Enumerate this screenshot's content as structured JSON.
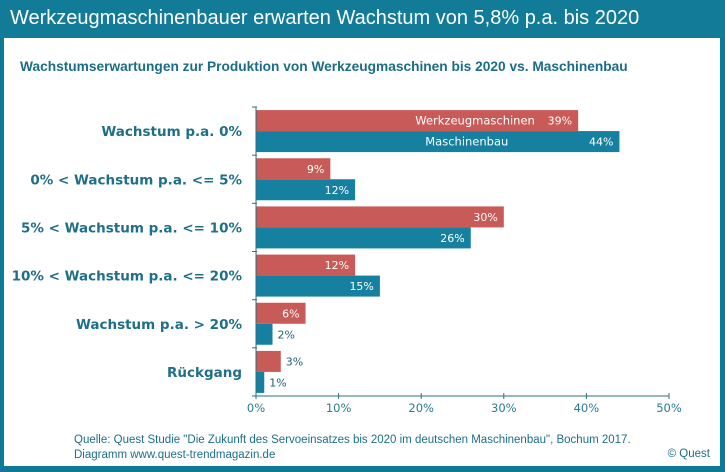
{
  "header": {
    "title": "Werkzeugmaschinenbauer erwarten Wachstum von 5,8% p.a. bis 2020"
  },
  "chart_data": {
    "type": "bar",
    "orientation": "horizontal",
    "title": "Wachstumserwartungen zur Produktion von Werkzeugmaschinen bis 2020 vs. Maschinenbau",
    "xlabel": "",
    "ylabel": "",
    "categories": [
      "Wachstum p.a. 0%",
      "0% < Wachstum p.a. <= 5%",
      "5% < Wachstum p.a. <= 10%",
      "10% < Wachstum p.a. <= 20%",
      "Wachstum p.a. > 20%",
      "Rückgang"
    ],
    "series": [
      {
        "name": "Werkzeugmaschinen",
        "color": "#c85a57",
        "values": [
          39,
          9,
          30,
          12,
          6,
          3
        ]
      },
      {
        "name": "Maschinenbau",
        "color": "#1580a0",
        "values": [
          44,
          12,
          26,
          15,
          2,
          1
        ]
      }
    ],
    "xlim": [
      0,
      50
    ],
    "xticks": [
      0,
      10,
      20,
      30,
      40,
      50
    ],
    "xtick_labels": [
      "0%",
      "10%",
      "20%",
      "30%",
      "40%",
      "50%"
    ],
    "value_suffix": "%",
    "grid": false,
    "legend": "inline-in-first-bars"
  },
  "footer": {
    "source_line": "Quelle: Quest Studie \"Die Zukunft des Servoeinsatzes bis 2020 im  deutschen Maschinenbau\", Bochum 2017.",
    "diagram_line": "Diagramm  www.quest-trendmagazin.de",
    "copyright": "© Quest"
  },
  "colors": {
    "frame": "#117b98",
    "text": "#1e6f87",
    "series_red": "#c85a57",
    "series_blue": "#1580a0"
  }
}
